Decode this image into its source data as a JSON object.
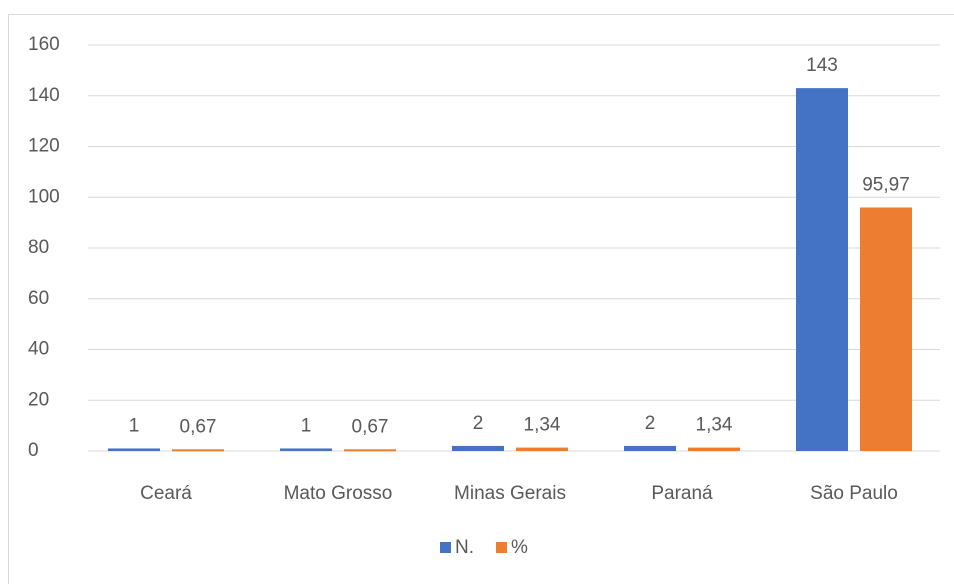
{
  "chart_data": {
    "type": "bar",
    "categories": [
      "Ceará",
      "Mato Grosso",
      "Minas Gerais",
      "Paraná",
      "São Paulo"
    ],
    "series": [
      {
        "name": "N.",
        "color": "#4472c4",
        "values": [
          1,
          1,
          2,
          2,
          143
        ]
      },
      {
        "name": "%",
        "color": "#ed7d31",
        "values": [
          0.67,
          0.67,
          1.34,
          1.34,
          95.97
        ],
        "value_labels": [
          "0,67",
          "0,67",
          "1,34",
          "1,34",
          "95,97"
        ]
      }
    ],
    "ylim": [
      0,
      160
    ],
    "yticks": [
      0,
      20,
      40,
      60,
      80,
      100,
      120,
      140,
      160
    ],
    "grid": true,
    "legend": "bottom"
  }
}
